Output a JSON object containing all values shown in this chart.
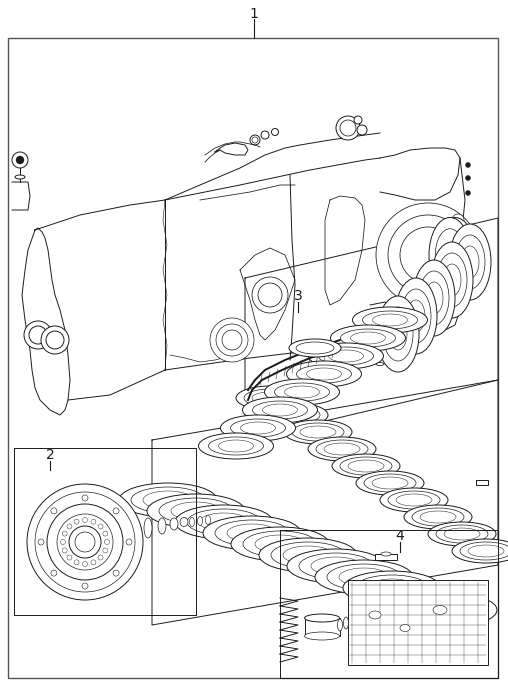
{
  "fig_width": 5.08,
  "fig_height": 6.87,
  "dpi": 100,
  "bg_color": "#ffffff",
  "lc": "#1a1a1a",
  "lw": 0.7,
  "lw_heavy": 1.2,
  "lw_border": 1.0,
  "border_color": "#555555",
  "label_fs": 10
}
